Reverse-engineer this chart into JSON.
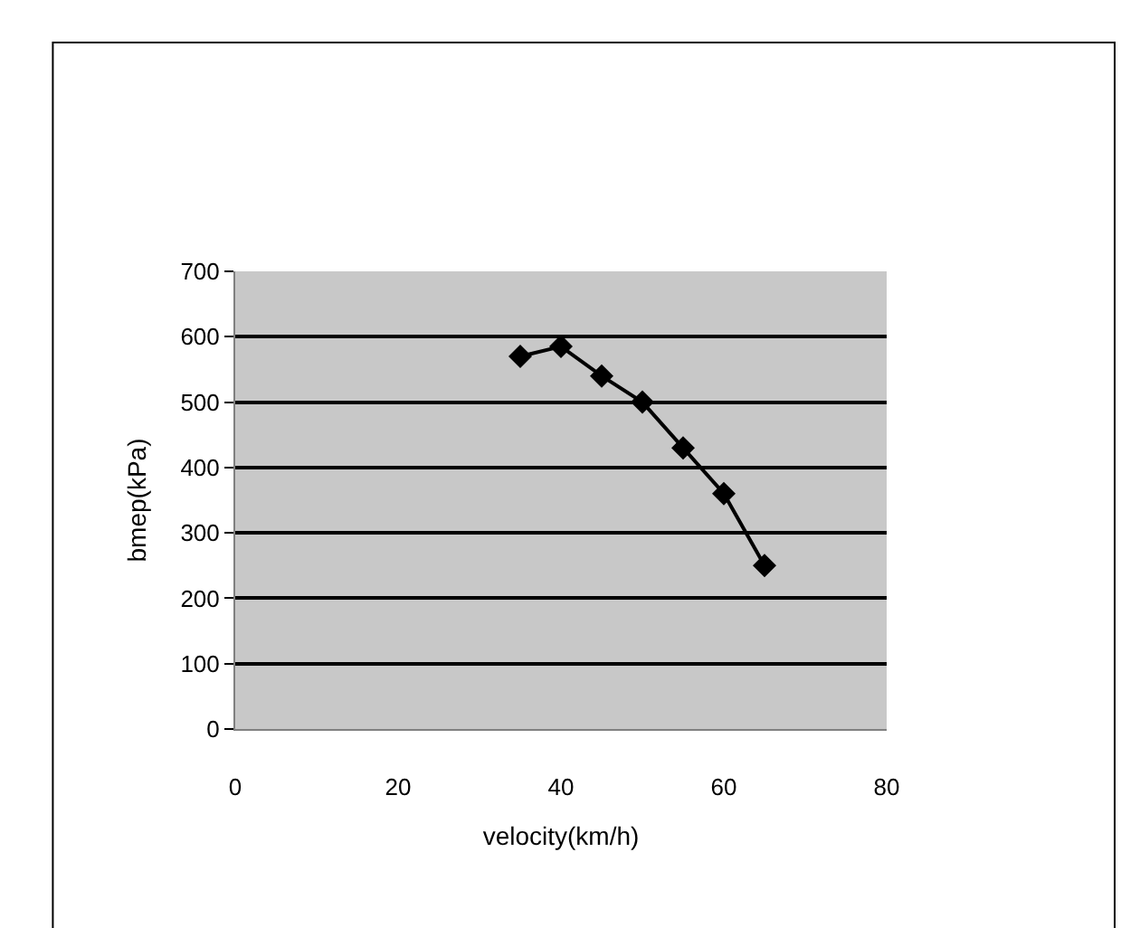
{
  "chart_data": {
    "type": "line",
    "xlabel": "velocity(km/h)",
    "ylabel": "bmep(kPa)",
    "x": [
      35,
      40,
      45,
      50,
      55,
      60,
      65
    ],
    "series": [
      {
        "color": "#000000",
        "values": [
          570,
          585,
          540,
          500,
          430,
          360,
          250
        ]
      }
    ],
    "xlim": [
      0,
      80
    ],
    "xticks": [
      0,
      20,
      40,
      60,
      80
    ],
    "ylim": [
      0,
      700
    ],
    "yticks": [
      0,
      100,
      200,
      300,
      400,
      500,
      600,
      700
    ],
    "grid": "y",
    "marker": "diamond",
    "line_style": "solid"
  }
}
